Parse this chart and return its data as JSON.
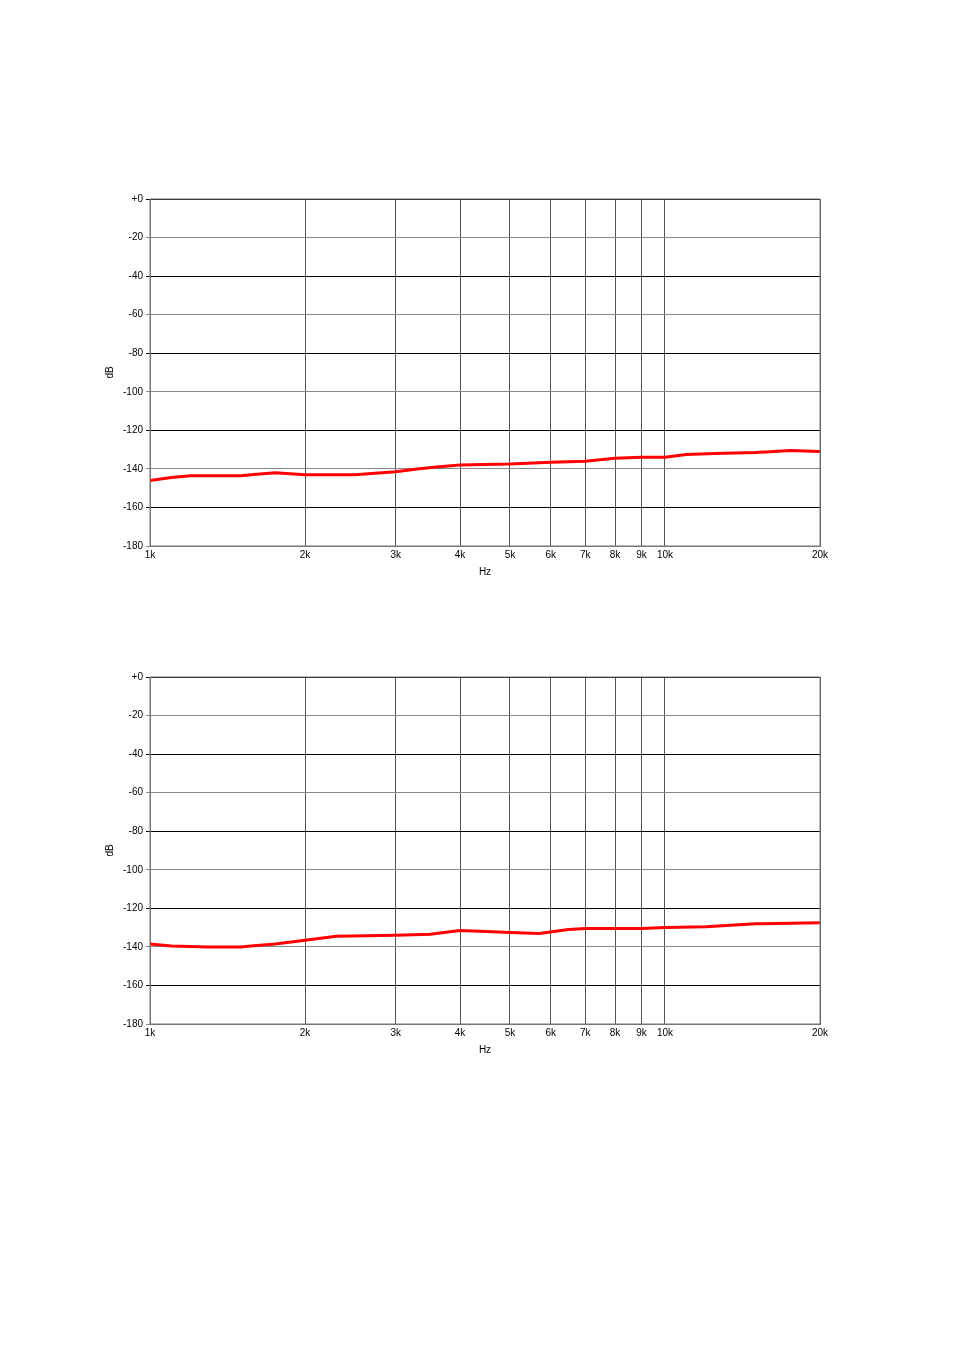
{
  "chart_data": [
    {
      "type": "line",
      "xlabel": "Hz",
      "ylabel": "dB",
      "log": "x",
      "grid": true,
      "legend": false,
      "marker": "none",
      "line_style": "solid",
      "xlim": [
        1000,
        20000
      ],
      "xticks": [
        {
          "value": 1000,
          "label": "1k"
        },
        {
          "value": 2000,
          "label": "2k"
        },
        {
          "value": 3000,
          "label": "3k"
        },
        {
          "value": 4000,
          "label": "4k"
        },
        {
          "value": 5000,
          "label": "5k"
        },
        {
          "value": 6000,
          "label": "6k"
        },
        {
          "value": 7000,
          "label": "7k"
        },
        {
          "value": 8000,
          "label": "8k"
        },
        {
          "value": 9000,
          "label": "9k"
        },
        {
          "value": 10000,
          "label": "10k"
        },
        {
          "value": 20000,
          "label": "20k"
        }
      ],
      "ylim": [
        -180,
        0
      ],
      "yticks": [
        -180,
        -160,
        -140,
        -120,
        -100,
        -80,
        -60,
        -40,
        -20,
        {
          "value": 0,
          "label": "+0"
        }
      ],
      "series": [
        {
          "color": "#ff0000",
          "x": [
            1000,
            1100,
            1200,
            1500,
            1750,
            2000,
            2500,
            3000,
            3300,
            3600,
            4000,
            5000,
            6000,
            7000,
            8000,
            9000,
            10000,
            11000,
            12500,
            15000,
            17500,
            20000
          ],
          "values": [
            -146,
            -144.5,
            -143.5,
            -143.5,
            -142,
            -143,
            -143,
            -141.5,
            -140,
            -139,
            -138,
            -137.5,
            -136.5,
            -136,
            -134.5,
            -134,
            -134,
            -132.5,
            -132,
            -131.5,
            -130.5,
            -131
          ]
        }
      ]
    },
    {
      "type": "line",
      "xlabel": "Hz",
      "ylabel": "dB",
      "log": "x",
      "grid": true,
      "legend": false,
      "marker": "none",
      "line_style": "solid",
      "xlim": [
        1000,
        20000
      ],
      "xticks": [
        {
          "value": 1000,
          "label": "1k"
        },
        {
          "value": 2000,
          "label": "2k"
        },
        {
          "value": 3000,
          "label": "3k"
        },
        {
          "value": 4000,
          "label": "4k"
        },
        {
          "value": 5000,
          "label": "5k"
        },
        {
          "value": 6000,
          "label": "6k"
        },
        {
          "value": 7000,
          "label": "7k"
        },
        {
          "value": 8000,
          "label": "8k"
        },
        {
          "value": 9000,
          "label": "9k"
        },
        {
          "value": 10000,
          "label": "10k"
        },
        {
          "value": 20000,
          "label": "20k"
        }
      ],
      "ylim": [
        -180,
        0
      ],
      "yticks": [
        -180,
        -160,
        -140,
        -120,
        -100,
        -80,
        -60,
        -40,
        -20,
        {
          "value": 0,
          "label": "+0"
        }
      ],
      "series": [
        {
          "color": "#ff0000",
          "x": [
            1000,
            1100,
            1300,
            1500,
            1750,
            2000,
            2300,
            3000,
            3500,
            4000,
            4500,
            5000,
            5700,
            6500,
            7000,
            9000,
            10000,
            12000,
            15000,
            20000
          ],
          "values": [
            -138.5,
            -139.5,
            -140,
            -140,
            -138.5,
            -136.5,
            -134.5,
            -134,
            -133.5,
            -131.5,
            -132,
            -132.5,
            -133,
            -131,
            -130.5,
            -130.5,
            -130,
            -129.5,
            -128,
            -127.5
          ]
        }
      ]
    }
  ]
}
